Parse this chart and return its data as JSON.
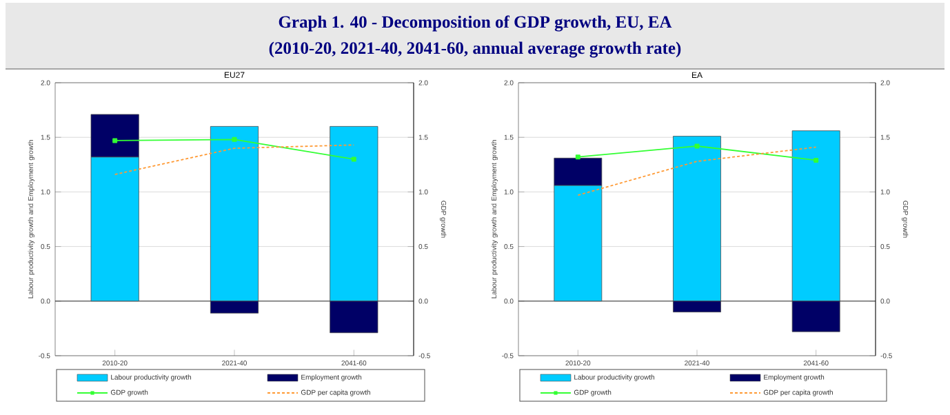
{
  "chart_data": [
    {
      "type": "other",
      "title": "Graph 1. 40 - Decomposition of GDP growth, EU, EA",
      "subtitle": "(2010-20, 2021-40, 2041-60, annual average growth rate)"
    },
    {
      "type": "bar",
      "title": "EU27",
      "categories": [
        "2010-20",
        "2021-40",
        "2041-60"
      ],
      "stacked": true,
      "ylabel": "Labour productivity growth and Employment growth",
      "y2label": "GDP growth",
      "ylim": [
        -0.5,
        2
      ],
      "yticks": [
        -0.5,
        {
          "value": 0,
          "label": "0.0"
        },
        0.5,
        {
          "value": 1,
          "label": "1.0"
        },
        1.5,
        {
          "value": 2,
          "label": "2.0"
        }
      ],
      "y2lim": [
        -0.5,
        2
      ],
      "y2ticks": [
        -0.5,
        {
          "value": 0,
          "label": "0.0"
        },
        0.5,
        {
          "value": 1,
          "label": "1.0"
        },
        1.5,
        {
          "value": 2,
          "label": "2.0"
        }
      ],
      "grid": "y",
      "legend": "bottom",
      "series": [
        {
          "name": "Labour productivity growth",
          "type": "bar",
          "color": "#00ccff",
          "values": [
            1.32,
            1.6,
            1.6
          ]
        },
        {
          "name": "Employment growth",
          "type": "bar",
          "color": "#000066",
          "values": [
            0.39,
            -0.11,
            -0.29
          ]
        },
        {
          "name": "GDP growth",
          "type": "line",
          "axis": "y2",
          "color": "#33ff33",
          "marker": "square",
          "line_style": "solid",
          "values": [
            1.47,
            1.48,
            1.3
          ]
        },
        {
          "name": "GDP per capita growth",
          "type": "line",
          "axis": "y2",
          "color": "#ff9933",
          "marker": "none",
          "line_style": "dashed",
          "values": [
            1.16,
            1.4,
            1.43
          ]
        }
      ]
    },
    {
      "type": "bar",
      "title": "EA",
      "categories": [
        "2010-20",
        "2021-40",
        "2041-60"
      ],
      "stacked": true,
      "ylabel": "Labour productivity growth and Employment growth",
      "y2label": "GDP growth",
      "ylim": [
        -0.5,
        2
      ],
      "yticks": [
        -0.5,
        {
          "value": 0,
          "label": "0.0"
        },
        0.5,
        {
          "value": 1,
          "label": "1.0"
        },
        1.5,
        {
          "value": 2,
          "label": "2.0"
        }
      ],
      "y2lim": [
        -0.5,
        2
      ],
      "y2ticks": [
        -0.5,
        {
          "value": 0,
          "label": "0.0"
        },
        0.5,
        {
          "value": 1,
          "label": "1.0"
        },
        1.5,
        {
          "value": 2,
          "label": "2.0"
        }
      ],
      "grid": "y",
      "legend": "bottom",
      "series": [
        {
          "name": "Labour productivity growth",
          "type": "bar",
          "color": "#00ccff",
          "values": [
            1.06,
            1.51,
            1.56
          ]
        },
        {
          "name": "Employment growth",
          "type": "bar",
          "color": "#000066",
          "values": [
            0.25,
            -0.1,
            -0.28
          ]
        },
        {
          "name": "GDP growth",
          "type": "line",
          "axis": "y2",
          "color": "#33ff33",
          "marker": "square",
          "line_style": "solid",
          "values": [
            1.32,
            1.42,
            1.29
          ]
        },
        {
          "name": "GDP per capita growth",
          "type": "line",
          "axis": "y2",
          "color": "#ff9933",
          "marker": "none",
          "line_style": "dashed",
          "values": [
            0.97,
            1.28,
            1.41
          ]
        }
      ]
    }
  ]
}
